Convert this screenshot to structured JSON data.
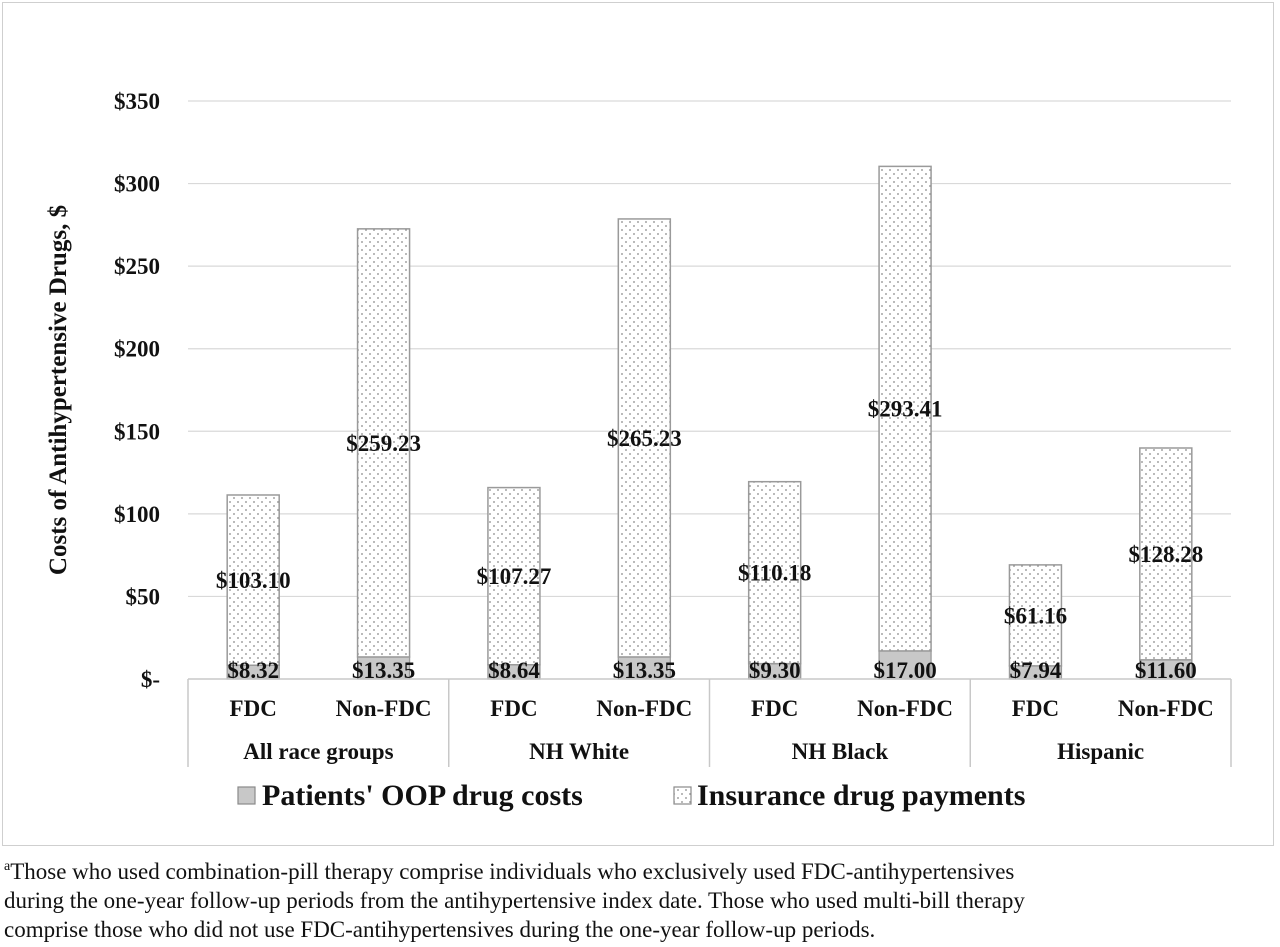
{
  "chart_data": {
    "type": "bar",
    "stacked": true,
    "title": "",
    "ylabel": "Costs of Antihypertensive Drugs, $",
    "ylim": [
      0,
      350
    ],
    "y_ticks": [
      0,
      50,
      100,
      150,
      200,
      250,
      300,
      350
    ],
    "y_tick_labels": [
      "$-",
      "$50",
      "$100",
      "$150",
      "$200",
      "$250",
      "$300",
      "$350"
    ],
    "grid": true,
    "groups": [
      "All race groups",
      "NH White",
      "NH Black",
      "Hispanic"
    ],
    "categories": [
      "FDC",
      "Non-FDC",
      "FDC",
      "Non-FDC",
      "FDC",
      "Non-FDC",
      "FDC",
      "Non-FDC"
    ],
    "series": [
      {
        "name": "Patients' OOP drug costs",
        "color": "#c8c8c8",
        "values": [
          8.32,
          13.35,
          8.64,
          13.35,
          9.3,
          17.0,
          7.94,
          11.6
        ],
        "labels": [
          "$8.32",
          "$13.35",
          "$8.64",
          "$13.35",
          "$9.30",
          "$17.00",
          "$7.94",
          "$11.60"
        ]
      },
      {
        "name": "Insurance drug payments",
        "color": "#ffffff",
        "pattern": "dotted",
        "values": [
          103.1,
          259.23,
          107.27,
          265.23,
          110.18,
          293.41,
          61.16,
          128.28
        ],
        "labels": [
          "$103.10",
          "$259.23",
          "$107.27",
          "$265.23",
          "$110.18",
          "$293.41",
          "$61.16",
          "$128.28"
        ]
      }
    ],
    "legend": {
      "placement": "bottom"
    }
  },
  "footnote": {
    "marker": "a",
    "lines": [
      "Those who used combination-pill therapy comprise individuals who exclusively used FDC-antihypertensives",
      "during the one-year follow-up periods from the antihypertensive index date. Those who used multi-bill therapy",
      "comprise those who did not use FDC-antihypertensives during the one-year follow-up periods."
    ]
  }
}
